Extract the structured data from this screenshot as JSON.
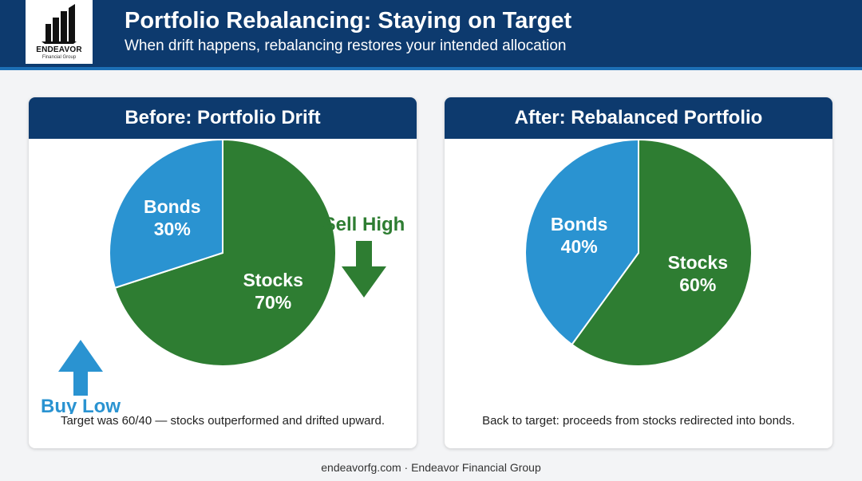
{
  "header": {
    "title": "Portfolio Rebalancing: Staying on Target",
    "subtitle": "When drift happens, rebalancing restores your intended allocation"
  },
  "logo": {
    "name": "ENDEAVOR",
    "sub": "Financial Group"
  },
  "colors": {
    "header_bg": "#0d3a6e",
    "stocks": "#2e7d32",
    "bonds": "#2a93d1"
  },
  "chart_data": [
    {
      "type": "pie",
      "title": "Before: Portfolio Drift",
      "slices": [
        {
          "label": "Stocks",
          "value": 70,
          "value_label": "70%"
        },
        {
          "label": "Bonds",
          "value": 30,
          "value_label": "30%"
        }
      ],
      "annotations": [
        {
          "text": "Sell High",
          "arrow": "down",
          "color": "#2e7d32"
        },
        {
          "text": "Buy Low",
          "arrow": "up",
          "color": "#2a93d1"
        }
      ],
      "caption": "Target was 60/40 — stocks outperformed and drifted upward."
    },
    {
      "type": "pie",
      "title": "After: Rebalanced Portfolio",
      "slices": [
        {
          "label": "Stocks",
          "value": 60,
          "value_label": "60%"
        },
        {
          "label": "Bonds",
          "value": 40,
          "value_label": "40%"
        }
      ],
      "caption": "Back to target: proceeds from stocks redirected into bonds."
    }
  ],
  "footer": "endeavorfg.com · Endeavor Financial Group"
}
